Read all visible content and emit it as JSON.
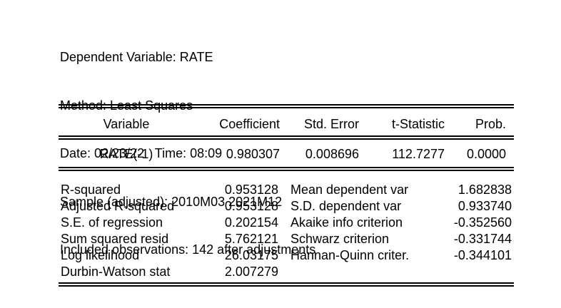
{
  "page": {
    "background_color": "#ffffff",
    "text_color": "#000000"
  },
  "header": {
    "lines": [
      "Dependent Variable: RATE",
      "Method: Least Squares",
      "Date: 02/23/22   Time: 08:09",
      "Sample (adjusted): 2010M03 2021M12",
      "Included observations: 142 after adjustments"
    ]
  },
  "coefficient_table": {
    "columns": [
      "Variable",
      "Coefficient",
      "Std. Error",
      "t-Statistic",
      "Prob."
    ],
    "rows": [
      {
        "variable": "RATE(-1)",
        "coefficient": "0.980307",
        "std_error": "0.008696",
        "t_statistic": "112.7277",
        "prob": "0.0000"
      }
    ]
  },
  "summary_stats": {
    "rows": [
      {
        "label_left": "R-squared",
        "value_left": "0.953128",
        "label_right": "Mean dependent var",
        "value_right": "1.682838"
      },
      {
        "label_left": "Adjusted R-squared",
        "value_left": "0.953128",
        "label_right": "S.D. dependent var",
        "value_right": "0.933740"
      },
      {
        "label_left": "S.E. of regression",
        "value_left": "0.202154",
        "label_right": "Akaike info criterion",
        "value_right": "-0.352560"
      },
      {
        "label_left": "Sum squared resid",
        "value_left": "5.762121",
        "label_right": "Schwarz criterion",
        "value_right": "-0.331744"
      },
      {
        "label_left": "Log likelihood",
        "value_left": "26.03175",
        "label_right": "Hannan-Quinn criter.",
        "value_right": "-0.344101"
      },
      {
        "label_left": "Durbin-Watson stat",
        "value_left": "2.007279",
        "label_right": "",
        "value_right": ""
      }
    ]
  }
}
